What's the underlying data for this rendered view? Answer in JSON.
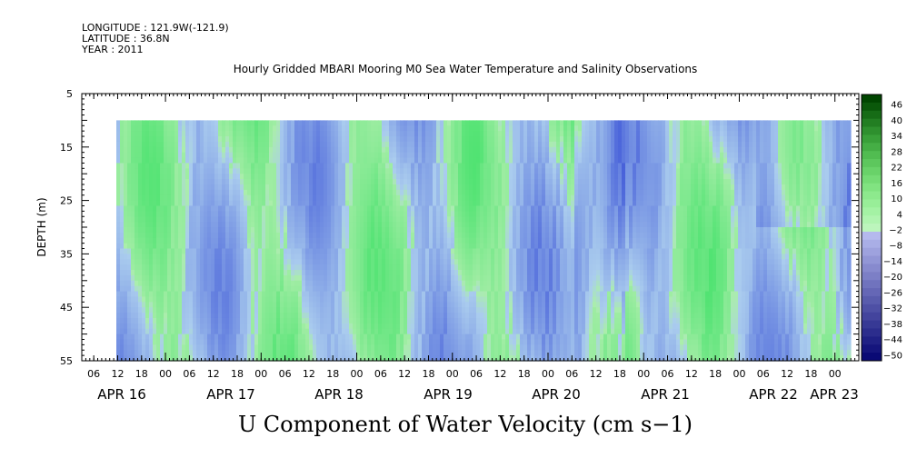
{
  "header": {
    "longitude": "LONGITUDE : 121.9W(-121.9)",
    "latitude": "LATITUDE : 36.8N",
    "year": "YEAR : 2011"
  },
  "chart_data": {
    "type": "heatmap",
    "title": "Hourly Gridded MBARI Mooring M0 Sea Water Temperature and Salinity Observations",
    "variable_label": "U Component of Water Velocity (cm s−1)",
    "ylabel": "DEPTH (m)",
    "y_axis": {
      "range": [
        5,
        55
      ],
      "inverted": true,
      "ticks": [
        5,
        15,
        25,
        35,
        45,
        55
      ]
    },
    "x_axis": {
      "hour_ticks": [
        "06",
        "12",
        "18",
        "00",
        "06",
        "12",
        "18",
        "00",
        "06",
        "12",
        "18",
        "00",
        "06",
        "12",
        "18",
        "00",
        "06",
        "12",
        "18",
        "00",
        "06",
        "12",
        "18",
        "00",
        "06",
        "12",
        "18",
        "00",
        "06",
        "12",
        "18",
        "00"
      ],
      "day_labels": [
        "APR 16",
        "APR 17",
        "APR 18",
        "APR 19",
        "APR 20",
        "APR 21",
        "APR 22",
        "APR 23"
      ]
    },
    "data_extent": {
      "depth_top": 10,
      "depth_bottom": 55
    },
    "colorbar": {
      "min": -50,
      "max": 50,
      "step": 3,
      "labels": [
        "46",
        "40",
        "34",
        "28",
        "22",
        "16",
        "10",
        "4",
        "−2",
        "−8",
        "−14",
        "−20",
        "−26",
        "−32",
        "−38",
        "−44",
        "−50"
      ]
    },
    "colors": {
      "positive": "#22dd55",
      "neutral": "#aaccee",
      "negative": "#1a2fd0"
    }
  }
}
